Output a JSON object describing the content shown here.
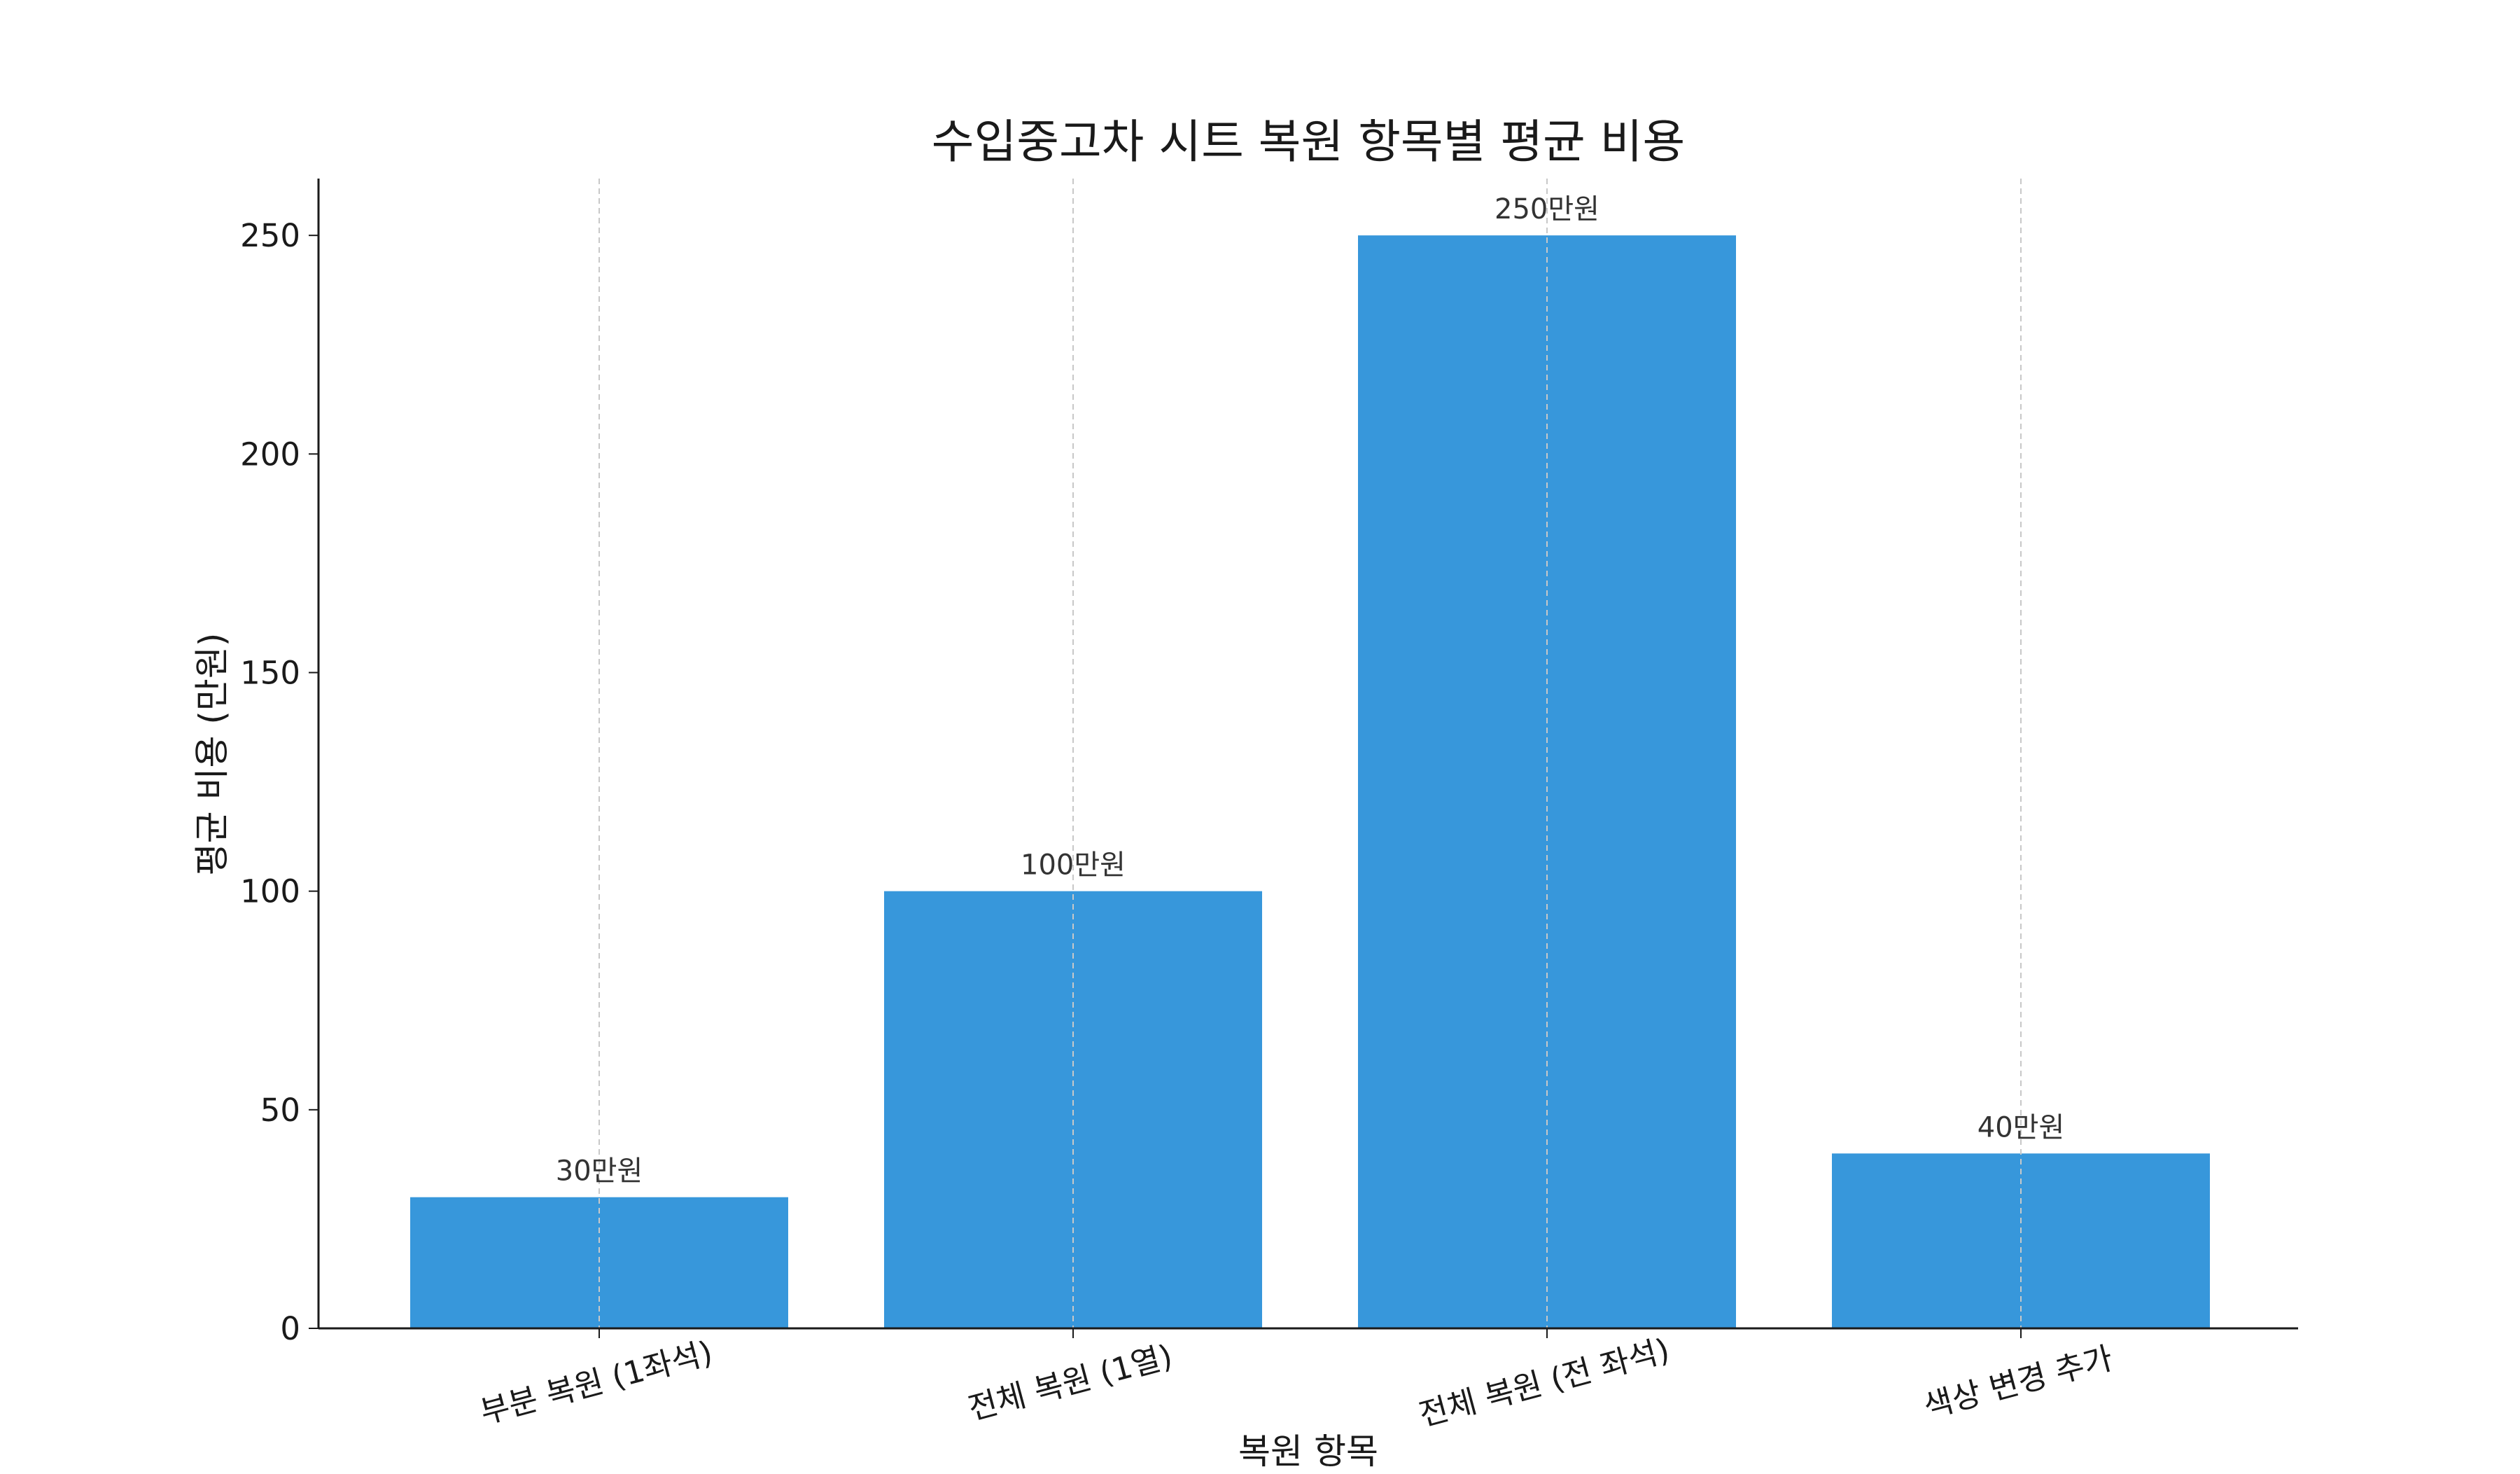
{
  "chart_data": {
    "type": "bar",
    "title": "수입중고차 시트 복원 항목별 평균 비용",
    "xlabel": "복원 항목",
    "ylabel": "평균 비용 (만원)",
    "categories": [
      "부분 복원 (1좌석)",
      "전체 복원 (1열)",
      "전체 복원 (전 좌석)",
      "색상 변경 추가"
    ],
    "values": [
      30,
      100,
      250,
      40
    ],
    "data_labels": [
      "30만원",
      "100만원",
      "250만원",
      "40만원"
    ],
    "ylim": [
      0,
      263
    ],
    "yticks": [
      0,
      50,
      100,
      150,
      200,
      250
    ],
    "ytick_labels": [
      "0",
      "50",
      "100",
      "150",
      "200",
      "250"
    ],
    "grid": "vertical dashed lines at categories",
    "bar_color": "#3797db"
  }
}
